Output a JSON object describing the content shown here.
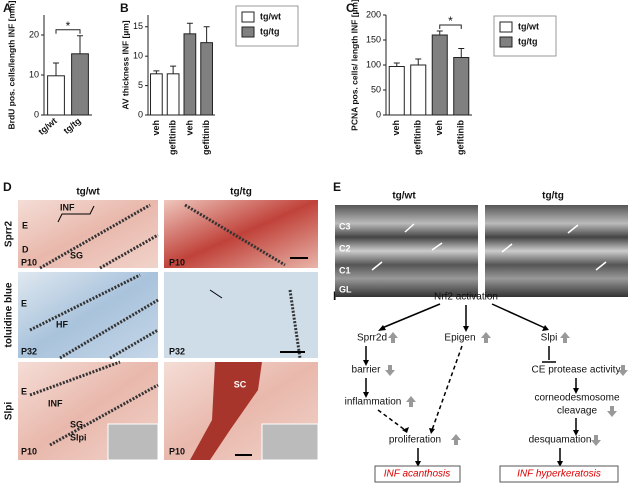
{
  "chart_data": [
    {
      "type": "bar",
      "ylabel": "BrdU pos. cells/length INF [mm]",
      "categories": [
        "tg/wt",
        "tg/tg"
      ],
      "values": [
        9.8,
        15.3
      ],
      "errors": [
        3.2,
        4.5
      ],
      "colors": [
        "#ffffff",
        "#808080"
      ],
      "ylim": [
        0,
        25
      ],
      "yticks": [
        0,
        10,
        20
      ],
      "significance": "*"
    },
    {
      "type": "bar",
      "ylabel": "AV thickness INF [µm]",
      "categories": [
        "veh",
        "gefitinib",
        "veh",
        "gefitinib"
      ],
      "series": [
        {
          "name": "tg/wt",
          "color": "#ffffff",
          "values": [
            7,
            7,
            null,
            null
          ],
          "errors": [
            0.5,
            1.3,
            null,
            null
          ]
        },
        {
          "name": "tg/tg",
          "color": "#808080",
          "values": [
            null,
            null,
            13.8,
            12.3
          ],
          "errors": [
            null,
            null,
            1.8,
            2.7
          ]
        }
      ],
      "ylim": [
        0,
        17
      ],
      "yticks": [
        0,
        5,
        10,
        15
      ],
      "legend": "right"
    },
    {
      "type": "bar",
      "ylabel": "PCNA pos. cells/ length INF [µm]",
      "categories": [
        "veh",
        "gefitinib",
        "veh",
        "gefitinib"
      ],
      "series": [
        {
          "name": "tg/wt",
          "color": "#ffffff",
          "values": [
            97,
            100,
            null,
            null
          ],
          "errors": [
            7,
            12,
            null,
            null
          ]
        },
        {
          "name": "tg/tg",
          "color": "#808080",
          "values": [
            null,
            null,
            160,
            115
          ],
          "errors": [
            null,
            null,
            8,
            18
          ]
        }
      ],
      "ylim": [
        0,
        200
      ],
      "yticks": [
        0,
        50,
        100,
        150,
        200
      ],
      "legend": "right",
      "significance": "*"
    }
  ],
  "figure": {
    "panel_letters": [
      "A",
      "B",
      "C",
      "D",
      "E",
      "F"
    ],
    "D": {
      "columns": [
        "tg/wt",
        "tg/tg"
      ],
      "rows": [
        "Sprr2",
        "toluidine blue",
        "Slpi"
      ],
      "labels": [
        "E",
        "D",
        "INF",
        "SG",
        "P10",
        "P10",
        "E",
        "HF",
        "P32",
        "P32",
        "E",
        "INF",
        "SG",
        "Slpi",
        "P10",
        "SC",
        "P10"
      ]
    },
    "E": {
      "columns": [
        "tg/wt",
        "tg/tg"
      ],
      "labels": [
        "C3",
        "C2",
        "C1",
        "GL"
      ]
    },
    "F": {
      "nodes": [
        "Nrf2 activation",
        "Sprr2d",
        "Epigen",
        "Slpi",
        "barrier",
        "CE protease activity",
        "inflammation",
        "corneodesmosome",
        "cleavage",
        "proliferation",
        "desquamation",
        "INF acanthosis",
        "INF hyperkeratosis"
      ]
    }
  }
}
